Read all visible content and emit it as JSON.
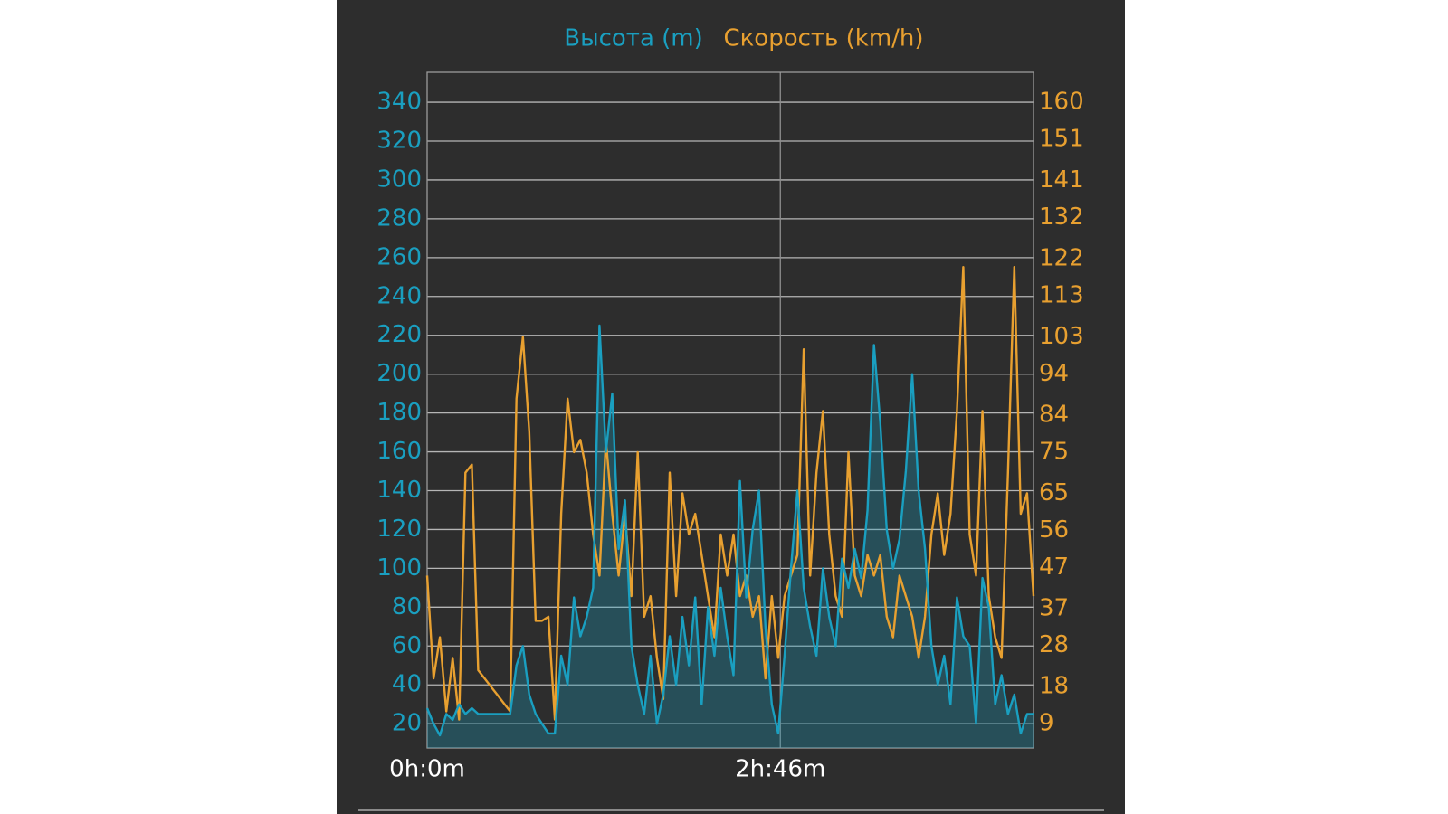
{
  "chart_data": {
    "type": "line",
    "x": [
      0,
      3,
      6,
      9,
      12,
      15,
      18,
      21,
      24,
      27,
      30,
      33,
      36,
      39,
      42,
      45,
      48,
      51,
      54,
      57,
      60,
      63,
      66,
      69,
      72,
      75,
      78,
      81,
      84,
      87,
      90,
      93,
      96,
      99,
      102,
      105,
      108,
      111,
      114,
      117,
      120,
      123,
      126,
      129,
      132,
      135,
      138,
      141,
      144,
      147,
      150,
      153,
      156,
      159,
      162,
      165,
      168,
      171,
      174,
      177,
      180,
      183,
      186,
      189,
      192,
      195,
      198,
      201,
      204,
      207,
      210,
      213,
      216,
      219,
      222,
      225,
      228,
      231,
      234,
      237,
      240,
      243,
      246,
      249,
      252,
      255,
      258,
      261,
      264,
      267,
      270,
      273,
      276,
      279,
      282,
      285
    ],
    "xlim": [
      0,
      285
    ],
    "xticks": [
      {
        "value": 0,
        "label": "0h:0m"
      },
      {
        "value": 166,
        "label": "2h:46m"
      }
    ],
    "ylim": [
      7.5,
      355.4
    ],
    "yticks": [
      20,
      40,
      60,
      80,
      100,
      120,
      140,
      160,
      180,
      200,
      220,
      240,
      260,
      280,
      300,
      320,
      340
    ],
    "y2lim": [
      3.1,
      167.3
    ],
    "y2ticks": [
      9,
      18,
      28,
      37,
      47,
      56,
      65,
      75,
      84,
      94,
      103,
      113,
      122,
      132,
      141,
      151,
      160
    ],
    "grid": true,
    "legend": "top",
    "series": [
      {
        "name": "Высота (m)",
        "color": "#1a9fc0",
        "area": true,
        "values": [
          28,
          20,
          14,
          25,
          22,
          30,
          25,
          28,
          25,
          25,
          25,
          25,
          25,
          25,
          50,
          60,
          35,
          25,
          20,
          15,
          15,
          55,
          40,
          85,
          65,
          75,
          90,
          225,
          160,
          190,
          110,
          135,
          60,
          40,
          25,
          55,
          20,
          35,
          65,
          40,
          75,
          50,
          85,
          30,
          80,
          55,
          90,
          65,
          45,
          145,
          85,
          120,
          140,
          70,
          30,
          15,
          55,
          100,
          140,
          90,
          70,
          55,
          100,
          75,
          60,
          105,
          90,
          110,
          95,
          130,
          215,
          175,
          120,
          100,
          115,
          150,
          200,
          140,
          110,
          60,
          40,
          55,
          30,
          85,
          65,
          60,
          20,
          95,
          80,
          30,
          45,
          25,
          35,
          15,
          25,
          25
        ]
      },
      {
        "name": "Скорость (km/h)",
        "color": "#e8a030",
        "axis": "y2",
        "values": [
          45,
          20,
          30,
          12,
          25,
          10,
          70,
          72,
          22,
          20,
          18,
          16,
          14,
          12,
          88,
          103,
          80,
          34,
          34,
          35,
          10,
          60,
          88,
          75,
          78,
          70,
          55,
          45,
          78,
          60,
          45,
          60,
          40,
          75,
          35,
          40,
          25,
          15,
          70,
          40,
          65,
          55,
          60,
          50,
          40,
          30,
          55,
          45,
          55,
          40,
          45,
          35,
          40,
          20,
          40,
          25,
          40,
          45,
          50,
          100,
          45,
          70,
          85,
          55,
          40,
          35,
          75,
          45,
          40,
          50,
          45,
          50,
          35,
          30,
          45,
          40,
          35,
          25,
          35,
          55,
          65,
          50,
          60,
          85,
          120,
          55,
          45,
          85,
          40,
          30,
          25,
          70,
          120,
          60,
          65,
          40
        ]
      }
    ]
  }
}
